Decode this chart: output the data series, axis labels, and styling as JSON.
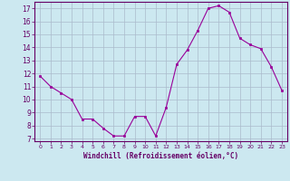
{
  "x": [
    0,
    1,
    2,
    3,
    4,
    5,
    6,
    7,
    8,
    9,
    10,
    11,
    12,
    13,
    14,
    15,
    16,
    17,
    18,
    19,
    20,
    21,
    22,
    23
  ],
  "y": [
    11.8,
    11.0,
    10.5,
    10.0,
    8.5,
    8.5,
    7.8,
    7.2,
    7.2,
    8.7,
    8.7,
    7.2,
    9.4,
    12.7,
    13.8,
    15.3,
    17.0,
    17.2,
    16.7,
    14.7,
    14.2,
    13.9,
    12.5,
    10.7
  ],
  "xlabel": "Windchill (Refroidissement éolien,°C)",
  "xlim": [
    -0.5,
    23.5
  ],
  "ylim": [
    6.8,
    17.5
  ],
  "yticks": [
    7,
    8,
    9,
    10,
    11,
    12,
    13,
    14,
    15,
    16,
    17
  ],
  "xticks": [
    0,
    1,
    2,
    3,
    4,
    5,
    6,
    7,
    8,
    9,
    10,
    11,
    12,
    13,
    14,
    15,
    16,
    17,
    18,
    19,
    20,
    21,
    22,
    23
  ],
  "line_color": "#990099",
  "marker_color": "#990099",
  "bg_color": "#cce8f0",
  "grid_color": "#aabbcc",
  "axis_color": "#660066",
  "tick_color": "#660066",
  "label_color": "#660066"
}
